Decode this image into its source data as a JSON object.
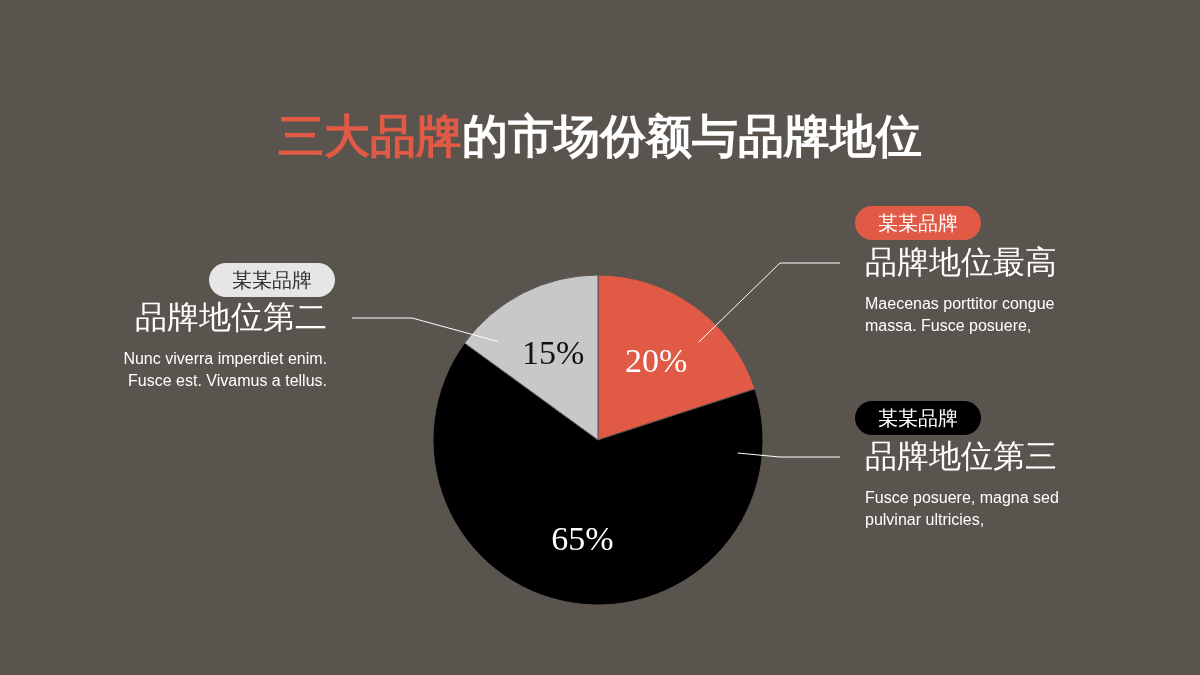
{
  "chart_data": {
    "type": "pie",
    "title": "三大品牌的市场份额与品牌地位",
    "categories": [
      "品牌地位最高",
      "品牌地位第三",
      "品牌地位第二"
    ],
    "values": [
      20,
      65,
      15
    ],
    "colors": [
      "#e05a45",
      "#000000",
      "#c8c8c8"
    ],
    "value_labels": [
      "20%",
      "65%",
      "15%"
    ],
    "legend": "right",
    "annotations": [
      "某某品牌",
      "Maecenas porttitor congue massa. Fusce posuere,",
      "某某品牌",
      "Fusce posuere, magna sed pulvinar ultricies,",
      "某某品牌",
      "Nunc viverra imperdiet enim. Fusce est. Vivamus a tellus."
    ]
  }
}
